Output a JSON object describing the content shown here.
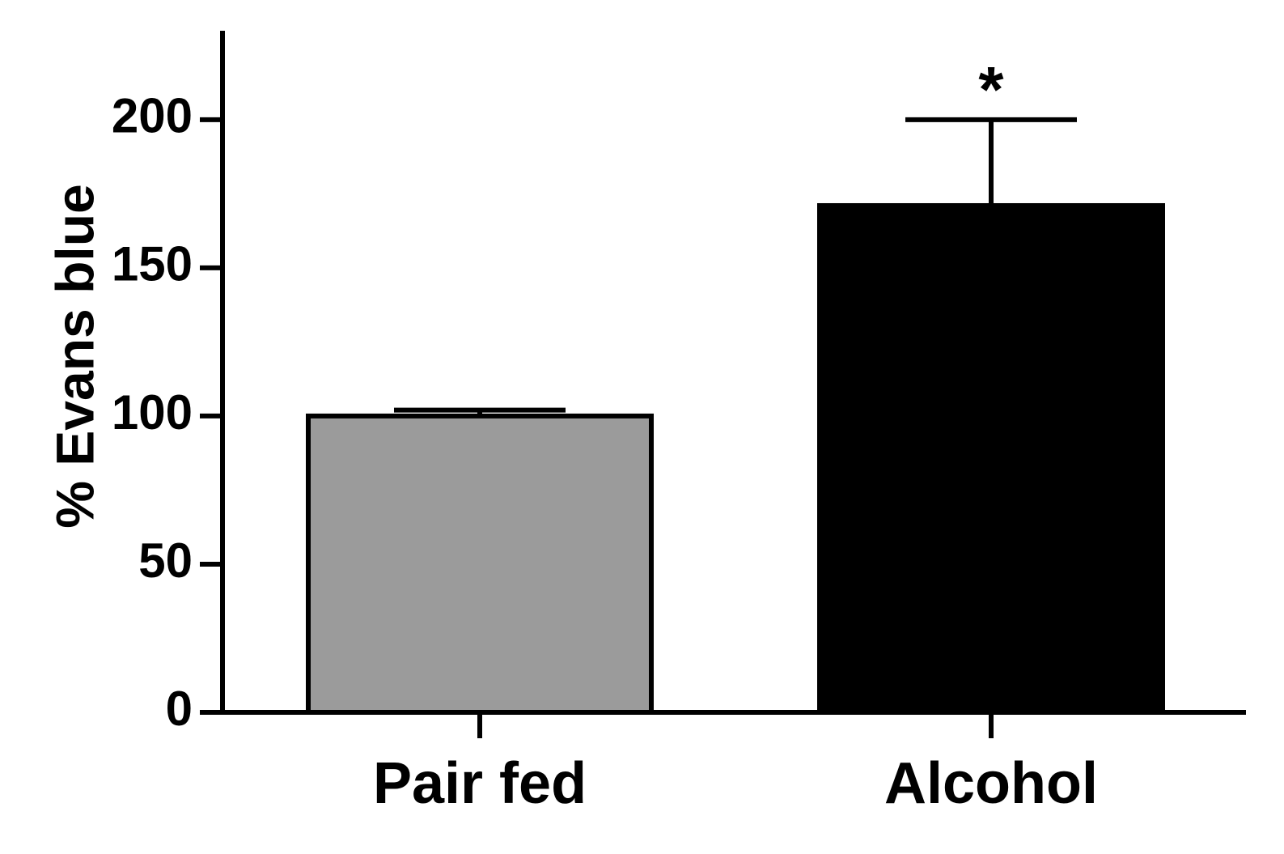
{
  "chart_data": {
    "type": "bar",
    "title": "",
    "xlabel": "",
    "ylabel": "% Evans blue",
    "categories": [
      "Pair fed",
      "Alcohol"
    ],
    "values": [
      100,
      171
    ],
    "errors": [
      2,
      29
    ],
    "ylim": [
      0,
      230
    ],
    "yticks": [
      0,
      50,
      100,
      150,
      200
    ],
    "ytick_labels": [
      "0",
      "50",
      "100",
      "150",
      "200"
    ],
    "bar_colors": [
      "#9b9b9b",
      "#000000"
    ],
    "significance": [
      "",
      "*"
    ],
    "grid": false,
    "legend": "none"
  }
}
